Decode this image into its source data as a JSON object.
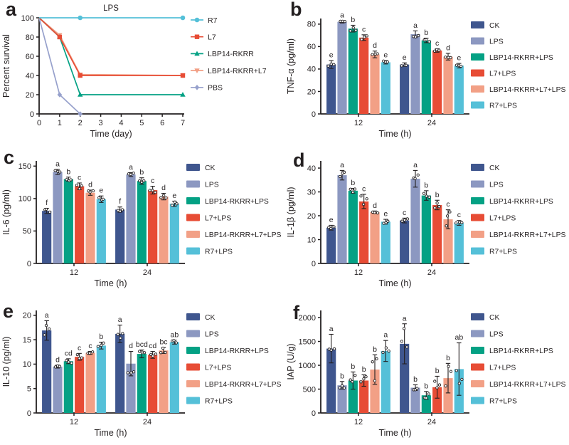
{
  "figure": {
    "ink": "#231f20",
    "background": "#ffffff",
    "colors": {
      "CK": "#3f568e",
      "LPS": "#8c98c1",
      "LBP14-RKRR+LPS": "#04a184",
      "L7+LPS": "#e74c35",
      "LBP14-RKRR+L7+LPS": "#f2a086",
      "R7+LPS": "#55c0d8"
    }
  },
  "chart_data": [
    {
      "id": "a",
      "panel_label": "a",
      "type": "line",
      "title": "LPS",
      "xlabel": "Time (day)",
      "ylabel": "Percent survival",
      "xlim": [
        0,
        7
      ],
      "ylim": [
        0,
        100
      ],
      "xticks": [
        0,
        1,
        2,
        3,
        4,
        5,
        6,
        7
      ],
      "yticks": [
        0,
        20,
        40,
        60,
        80,
        100
      ],
      "grid": false,
      "legend_position": "right",
      "series": [
        {
          "name": "R7",
          "color": "#55c0d8",
          "marker": "circle",
          "x": [
            0,
            1,
            2,
            7
          ],
          "y": [
            100,
            100,
            100,
            100
          ],
          "marker_x": [
            2,
            7
          ]
        },
        {
          "name": "L7",
          "color": "#e74c35",
          "marker": "square",
          "x": [
            0,
            1,
            2,
            7
          ],
          "y": [
            100,
            80,
            40,
            40
          ],
          "marker_x": [
            1,
            2,
            7
          ]
        },
        {
          "name": "LBP14-RKRR",
          "color": "#04a184",
          "marker": "triangle-up",
          "x": [
            0,
            1,
            2,
            7
          ],
          "y": [
            100,
            80,
            20,
            20
          ],
          "marker_x": [
            1,
            2,
            7
          ]
        },
        {
          "name": "LBP14-RKRR+L7",
          "color": "#f2a086",
          "marker": "triangle-down",
          "x": [
            0,
            1,
            2,
            7
          ],
          "y": [
            100,
            82,
            41,
            40
          ],
          "marker_x": [
            1,
            2,
            7
          ]
        },
        {
          "name": "PBS",
          "color": "#97a1cc",
          "marker": "diamond",
          "x": [
            0,
            1,
            2
          ],
          "y": [
            100,
            20,
            0
          ],
          "marker_x": [
            1,
            2
          ]
        }
      ]
    },
    {
      "id": "b",
      "panel_label": "b",
      "type": "bar",
      "xlabel": "Time (h)",
      "ylabel": "TNF-α (pg/ml)",
      "categories": [
        "12",
        "24"
      ],
      "yticks": [
        0,
        20,
        40,
        60,
        80
      ],
      "ylim": [
        0,
        85
      ],
      "grid": false,
      "legend_position": "right",
      "series": [
        {
          "name": "CK",
          "values": [
            44,
            44
          ],
          "errors": [
            3.5,
            1.5
          ],
          "letters": [
            "e",
            "e"
          ]
        },
        {
          "name": "LPS",
          "values": [
            82,
            71
          ],
          "errors": [
            1,
            3
          ],
          "letters": [
            "a",
            "a"
          ]
        },
        {
          "name": "LBP14-RKRR+LPS",
          "values": [
            76,
            65.5
          ],
          "errors": [
            3,
            2
          ],
          "letters": [
            "b",
            "b"
          ]
        },
        {
          "name": "L7+LPS",
          "values": [
            68,
            56.5
          ],
          "errors": [
            2.5,
            1.5
          ],
          "letters": [
            "c",
            "c"
          ]
        },
        {
          "name": "LBP14-RKRR+L7+LPS",
          "values": [
            53,
            51
          ],
          "errors": [
            3,
            3
          ],
          "letters": [
            "d",
            "d"
          ]
        },
        {
          "name": "R7+LPS",
          "values": [
            46,
            43
          ],
          "errors": [
            1.5,
            2
          ],
          "letters": [
            "e",
            "e"
          ]
        }
      ]
    },
    {
      "id": "c",
      "panel_label": "c",
      "type": "bar",
      "xlabel": "Time (h)",
      "ylabel": "IL-6 (pg/ml)",
      "categories": [
        "12",
        "24"
      ],
      "yticks": [
        0,
        50,
        100,
        150
      ],
      "ylim": [
        0,
        158
      ],
      "grid": false,
      "legend_position": "right",
      "series": [
        {
          "name": "CK",
          "values": [
            81,
            83
          ],
          "errors": [
            4,
            4
          ],
          "letters": [
            "f",
            "f"
          ]
        },
        {
          "name": "LPS",
          "values": [
            141,
            137
          ],
          "errors": [
            4,
            3
          ],
          "letters": [
            "a",
            "a"
          ]
        },
        {
          "name": "LBP14-RKRR+LPS",
          "values": [
            130,
            127
          ],
          "errors": [
            3,
            5
          ],
          "letters": [
            "b",
            "b"
          ]
        },
        {
          "name": "L7+LPS",
          "values": [
            119,
            113
          ],
          "errors": [
            5,
            6
          ],
          "letters": [
            "c",
            "c"
          ]
        },
        {
          "name": "LBP14-RKRR+L7+LPS",
          "values": [
            109,
            103
          ],
          "errors": [
            4,
            5
          ],
          "letters": [
            "d",
            "d"
          ]
        },
        {
          "name": "R7+LPS",
          "values": [
            99,
            92
          ],
          "errors": [
            5,
            4
          ],
          "letters": [
            "e",
            "e"
          ]
        }
      ]
    },
    {
      "id": "d",
      "panel_label": "d",
      "type": "bar",
      "xlabel": "Time (h)",
      "ylabel": "IL-1β (pg/ml)",
      "categories": [
        "12",
        "24"
      ],
      "yticks": [
        0,
        10,
        20,
        30,
        40
      ],
      "ylim": [
        0,
        43
      ],
      "grid": false,
      "legend_position": "right",
      "series": [
        {
          "name": "CK",
          "values": [
            15,
            18
          ],
          "errors": [
            1,
            1
          ],
          "letters": [
            "e",
            "c"
          ]
        },
        {
          "name": "LPS",
          "values": [
            37,
            35.5
          ],
          "errors": [
            2,
            3.5
          ],
          "letters": [
            "a",
            "a"
          ]
        },
        {
          "name": "LBP14-RKRR+LPS",
          "values": [
            30.5,
            28.5
          ],
          "errors": [
            1,
            2
          ],
          "letters": [
            "b",
            "b"
          ]
        },
        {
          "name": "L7+LPS",
          "values": [
            26,
            24.5
          ],
          "errors": [
            3,
            2
          ],
          "letters": [
            "c",
            "b"
          ]
        },
        {
          "name": "LBP14-RKRR+L7+LPS",
          "values": [
            21.5,
            18.5
          ],
          "errors": [
            0.5,
            4
          ],
          "letters": [
            "d",
            "c"
          ]
        },
        {
          "name": "R7+LPS",
          "values": [
            17.5,
            17
          ],
          "errors": [
            1,
            1
          ],
          "letters": [
            "e",
            "c"
          ]
        }
      ]
    },
    {
      "id": "e",
      "panel_label": "e",
      "type": "bar",
      "xlabel": "Time (h)",
      "ylabel": "IL-10 (pg/ml)",
      "categories": [
        "12",
        "24"
      ],
      "yticks": [
        0,
        5,
        10,
        15,
        20
      ],
      "ylim": [
        0,
        21
      ],
      "grid": false,
      "legend_position": "right",
      "series": [
        {
          "name": "CK",
          "values": [
            16.9,
            16.2
          ],
          "errors": [
            2,
            1.8
          ],
          "letters": [
            "a",
            "a"
          ]
        },
        {
          "name": "LPS",
          "values": [
            9.5,
            10.1
          ],
          "errors": [
            0.3,
            2.5
          ],
          "letters": [
            "d",
            "d"
          ]
        },
        {
          "name": "LBP14-RKRR+LPS",
          "values": [
            10.6,
            12.1
          ],
          "errors": [
            0.5,
            0.8
          ],
          "letters": [
            "cd",
            "bcd"
          ]
        },
        {
          "name": "L7+LPS",
          "values": [
            11.5,
            11.9
          ],
          "errors": [
            0.7,
            0.7
          ],
          "letters": [
            "c",
            "cd"
          ]
        },
        {
          "name": "LBP14-RKRR+L7+LPS",
          "values": [
            12.3,
            12.8
          ],
          "errors": [
            0.3,
            0.6
          ],
          "letters": [
            "c",
            "bc"
          ]
        },
        {
          "name": "R7+LPS",
          "values": [
            13.8,
            14.5
          ],
          "errors": [
            0.7,
            0.4
          ],
          "letters": [
            "b",
            "ab"
          ]
        }
      ]
    },
    {
      "id": "f",
      "panel_label": "f",
      "type": "bar",
      "xlabel": "Time (h)",
      "ylabel": "IAP (U/g)",
      "categories": [
        "12",
        "24"
      ],
      "yticks": [
        0,
        500,
        1000,
        1500,
        2000
      ],
      "ylim": [
        0,
        2150
      ],
      "grid": false,
      "legend_position": "right",
      "series": [
        {
          "name": "CK",
          "values": [
            1350,
            1450
          ],
          "errors": [
            300,
            420
          ],
          "letters": [
            "a",
            "a"
          ]
        },
        {
          "name": "LPS",
          "values": [
            580,
            530
          ],
          "errors": [
            80,
            60
          ],
          "letters": [
            "b",
            "b"
          ]
        },
        {
          "name": "LBP14-RKRR+LPS",
          "values": [
            680,
            370
          ],
          "errors": [
            180,
            80
          ],
          "letters": [
            "b",
            "b"
          ]
        },
        {
          "name": "L7+LPS",
          "values": [
            680,
            540
          ],
          "errors": [
            120,
            230
          ],
          "letters": [
            "b",
            "b"
          ]
        },
        {
          "name": "LBP14-RKRR+L7+LPS",
          "values": [
            910,
            730
          ],
          "errors": [
            310,
            310
          ],
          "letters": [
            "b",
            "b"
          ]
        },
        {
          "name": "R7+LPS",
          "values": [
            1300,
            920
          ],
          "errors": [
            220,
            550
          ],
          "letters": [
            "a",
            "ab"
          ]
        }
      ]
    }
  ]
}
